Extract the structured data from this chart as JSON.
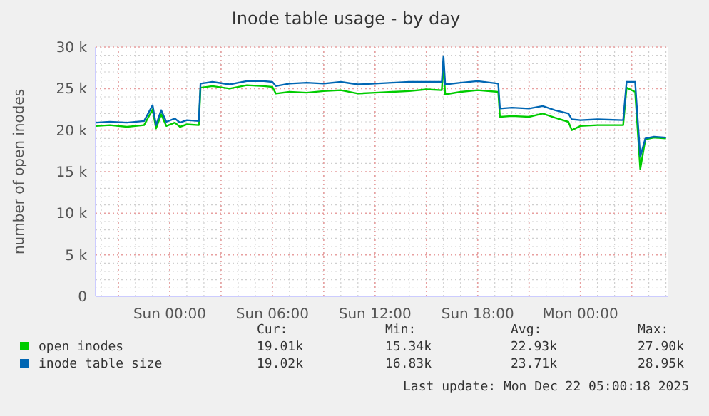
{
  "chart_data": {
    "type": "line",
    "title": "Inode table usage - by day",
    "ylabel": "number of open inodes",
    "x": [
      "2025-12-20T19:42",
      "2025-12-20T20:30",
      "2025-12-20T21:30",
      "2025-12-20T22:30",
      "2025-12-20T23:00",
      "2025-12-20T23:12",
      "2025-12-20T23:30",
      "2025-12-20T23:48",
      "2025-12-21T00:18",
      "2025-12-21T00:36",
      "2025-12-21T01:00",
      "2025-12-21T01:42",
      "2025-12-21T01:48",
      "2025-12-21T02:30",
      "2025-12-21T03:30",
      "2025-12-21T04:30",
      "2025-12-21T05:30",
      "2025-12-21T06:00",
      "2025-12-21T06:12",
      "2025-12-21T07:00",
      "2025-12-21T08:00",
      "2025-12-21T09:00",
      "2025-12-21T10:00",
      "2025-12-21T11:00",
      "2025-12-21T12:00",
      "2025-12-21T13:00",
      "2025-12-21T14:00",
      "2025-12-21T15:00",
      "2025-12-21T15:54",
      "2025-12-21T16:00",
      "2025-12-21T16:06",
      "2025-12-21T17:00",
      "2025-12-21T18:00",
      "2025-12-21T19:12",
      "2025-12-21T19:18",
      "2025-12-21T20:00",
      "2025-12-21T21:00",
      "2025-12-21T21:48",
      "2025-12-21T22:30",
      "2025-12-21T23:18",
      "2025-12-21T23:30",
      "2025-12-22T00:00",
      "2025-12-22T01:00",
      "2025-12-22T02:30",
      "2025-12-22T02:42",
      "2025-12-22T03:12",
      "2025-12-22T03:30",
      "2025-12-22T03:48",
      "2025-12-22T04:18",
      "2025-12-22T05:00"
    ],
    "series": [
      {
        "name": "open inodes",
        "color": "#00cc00",
        "values": [
          20500,
          20600,
          20400,
          20600,
          22500,
          20200,
          21900,
          20500,
          20900,
          20400,
          20700,
          20600,
          25100,
          25300,
          25000,
          25400,
          25300,
          25200,
          24400,
          24600,
          24500,
          24700,
          24800,
          24400,
          24500,
          24600,
          24700,
          24900,
          24800,
          27900,
          24300,
          24600,
          24800,
          24600,
          21600,
          21700,
          21600,
          22000,
          21500,
          21000,
          20000,
          20500,
          20600,
          20600,
          25100,
          24600,
          15300,
          18900,
          19100,
          19000
        ]
      },
      {
        "name": "inode table size",
        "color": "#0066b3",
        "values": [
          20900,
          21000,
          20900,
          21100,
          23000,
          20600,
          22400,
          21000,
          21400,
          20900,
          21200,
          21100,
          25600,
          25800,
          25500,
          25900,
          25900,
          25800,
          25300,
          25600,
          25700,
          25600,
          25800,
          25500,
          25600,
          25700,
          25800,
          25800,
          25800,
          28900,
          25500,
          25700,
          25900,
          25600,
          22600,
          22700,
          22600,
          22900,
          22400,
          22000,
          21300,
          21200,
          21300,
          21200,
          25800,
          25800,
          16800,
          19000,
          19200,
          19100
        ]
      }
    ],
    "xlim": [
      "2025-12-20T19:40",
      "2025-12-22T05:06"
    ],
    "xticks": [
      {
        "value": "2025-12-20T21:00",
        "label": null
      },
      {
        "value": "2025-12-21T00:00",
        "label": "Sun 00:00"
      },
      {
        "value": "2025-12-21T03:00",
        "label": null
      },
      {
        "value": "2025-12-21T06:00",
        "label": "Sun 06:00"
      },
      {
        "value": "2025-12-21T09:00",
        "label": null
      },
      {
        "value": "2025-12-21T12:00",
        "label": "Sun 12:00"
      },
      {
        "value": "2025-12-21T15:00",
        "label": null
      },
      {
        "value": "2025-12-21T18:00",
        "label": "Sun 18:00"
      },
      {
        "value": "2025-12-21T21:00",
        "label": null
      },
      {
        "value": "2025-12-22T00:00",
        "label": "Mon 00:00"
      },
      {
        "value": "2025-12-22T03:00",
        "label": null
      }
    ],
    "ylim": [
      0,
      30000
    ],
    "yticks": [
      {
        "value": 0,
        "label": "0"
      },
      {
        "value": 5000,
        "label": "5 k"
      },
      {
        "value": 10000,
        "label": "10 k"
      },
      {
        "value": 15000,
        "label": "15 k"
      },
      {
        "value": 20000,
        "label": "20 k"
      },
      {
        "value": 25000,
        "label": "25 k"
      },
      {
        "value": 30000,
        "label": "30 k"
      }
    ],
    "grid": true,
    "legend": "bottom",
    "marker": "none",
    "line_style": "solid",
    "annotations": [
      "Cur:",
      "Min:",
      "Avg:",
      "Max:",
      "19.01k",
      "15.34k",
      "22.93k",
      "27.90k",
      "19.02k",
      "16.83k",
      "23.71k",
      "28.95k",
      "Last update: Mon Dec 22 05:00:18 2025"
    ]
  }
}
